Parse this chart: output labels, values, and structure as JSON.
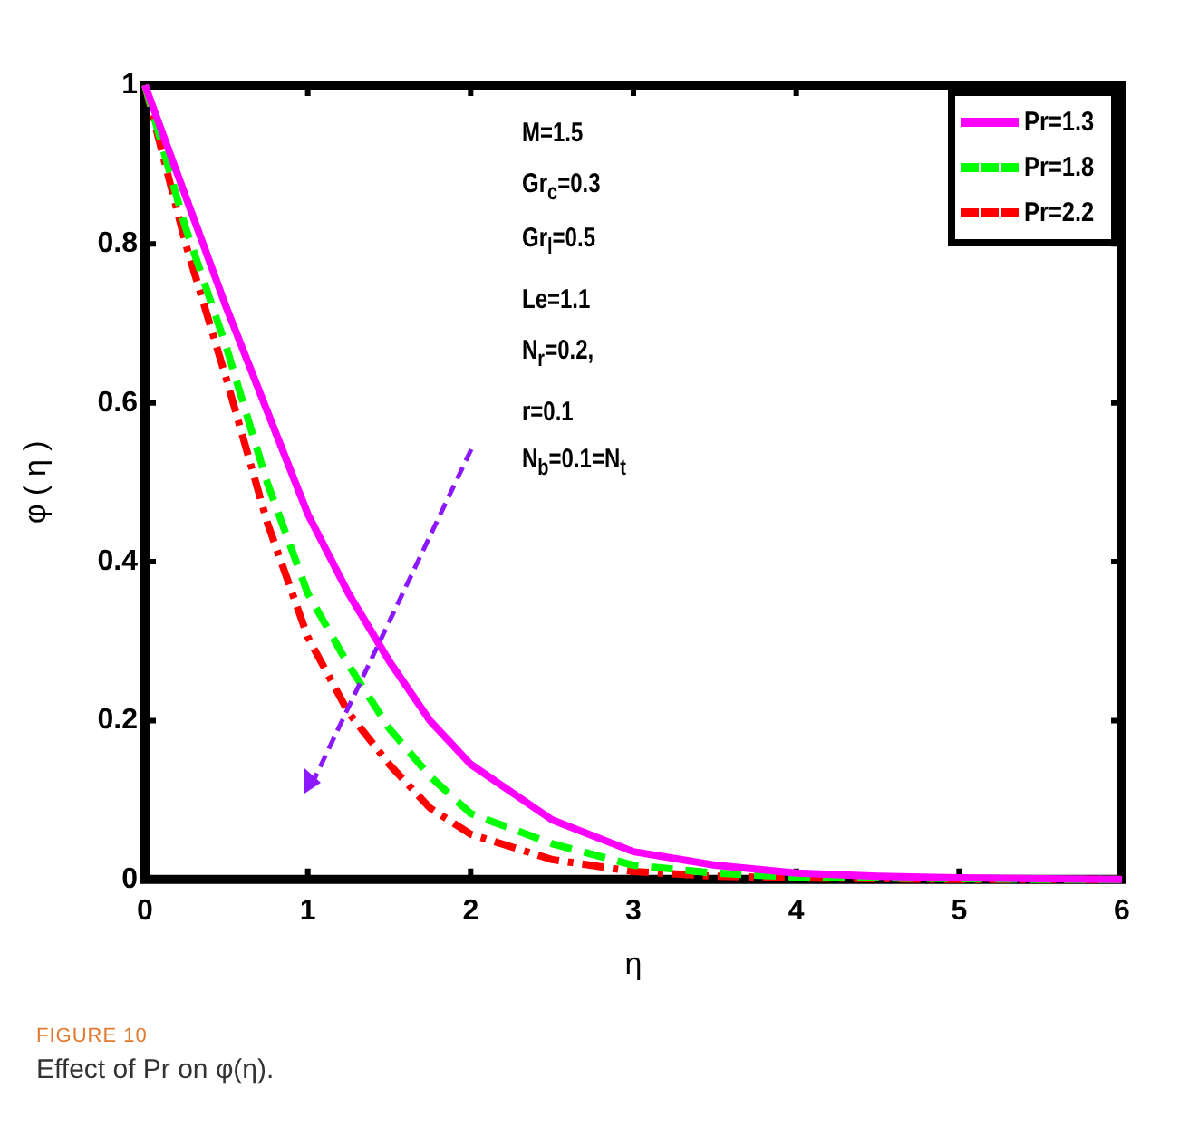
{
  "chart_data": {
    "type": "line",
    "xlabel": "η",
    "ylabel": "φ ( η )",
    "x": [
      0,
      0.25,
      0.5,
      0.75,
      1,
      1.25,
      1.5,
      1.75,
      2,
      2.5,
      3,
      3.5,
      4,
      4.5,
      5,
      5.5,
      6
    ],
    "series": [
      {
        "name": "Pr=1.3",
        "color": "#ff00ff",
        "line_style": "solid",
        "values": [
          1,
          0.86,
          0.72,
          0.59,
          0.46,
          0.36,
          0.275,
          0.2,
          0.145,
          0.075,
          0.035,
          0.018,
          0.008,
          0.004,
          0.002,
          0.001,
          0
        ]
      },
      {
        "name": "Pr=1.8",
        "color": "#00ff00",
        "line_style": "dashed",
        "values": [
          1,
          0.82,
          0.67,
          0.5,
          0.36,
          0.27,
          0.19,
          0.13,
          0.083,
          0.045,
          0.018,
          0.008,
          0.003,
          0.002,
          0.001,
          0,
          0
        ]
      },
      {
        "name": "Pr=2.2",
        "color": "#ff0000",
        "line_style": "dotted",
        "values": [
          1,
          0.8,
          0.63,
          0.45,
          0.305,
          0.21,
          0.145,
          0.09,
          0.057,
          0.025,
          0.01,
          0.004,
          0.002,
          0.001,
          0,
          0,
          0
        ]
      }
    ],
    "xlim": [
      0,
      6
    ],
    "xticks": [
      0,
      1,
      2,
      3,
      4,
      5,
      6
    ],
    "ylim": [
      0,
      1
    ],
    "yticks": [
      0,
      0.2,
      0.4,
      0.6,
      0.8,
      1
    ],
    "grid": false,
    "legend": "top right",
    "marker": "none",
    "annotations": [
      "M=1.5",
      "Gr$_{c}$=0.3",
      "Gr$_{l}$=0.5",
      "Le=1.1",
      "N$_{r}$=0.2,",
      "r=0.1",
      "N$_{b}$=0.1=N$_{t}$",
      "FIGURE 10",
      "Effect of Pr on φ(η)."
    ]
  }
}
